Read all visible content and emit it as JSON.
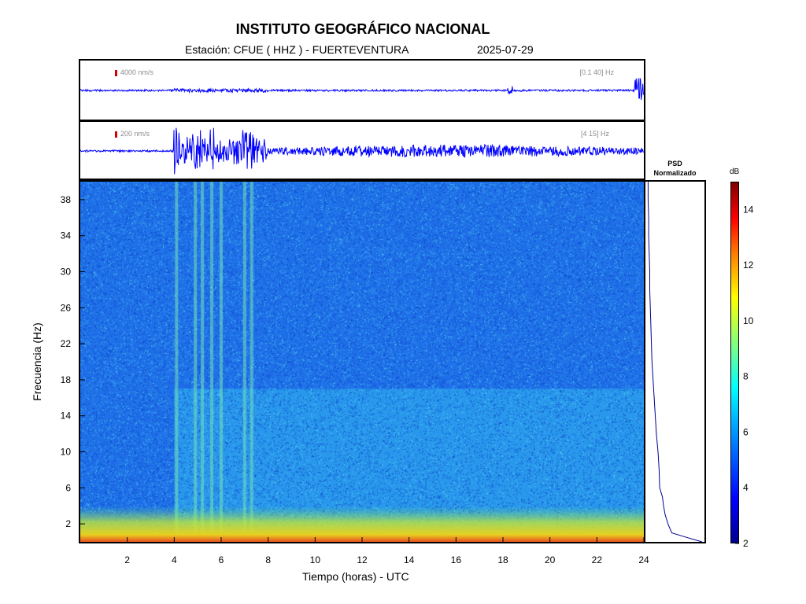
{
  "header": {
    "title": "INSTITUTO GEOGRÁFICO NACIONAL",
    "station": "Estación:  CFUE ( HHZ ) - FUERTEVENTURA",
    "date": "2025-07-29"
  },
  "traces": [
    {
      "amplitude_label": "4000 nm/s",
      "filter_label": "[0.1 40] Hz"
    },
    {
      "amplitude_label": "200 nm/s",
      "filter_label": "[4 15] Hz"
    }
  ],
  "psd": {
    "title_line1": "PSD",
    "title_line2": "Normalizado"
  },
  "colorbar": {
    "unit": "dB",
    "ticks": [
      "2",
      "4",
      "6",
      "8",
      "10",
      "12",
      "14"
    ],
    "range": [
      2,
      15
    ],
    "colors": [
      "#00008f",
      "#0000ff",
      "#0080ff",
      "#00ffff",
      "#80ff80",
      "#ffff00",
      "#ff8000",
      "#ff0000",
      "#800000"
    ]
  },
  "chart_data": {
    "type": "heatmap",
    "xlabel": "Tiempo (horas) - UTC",
    "ylabel": "Frecuencia  (Hz)",
    "xlim": [
      0,
      24
    ],
    "ylim": [
      0,
      40
    ],
    "x_ticks": [
      "2",
      "4",
      "6",
      "8",
      "10",
      "12",
      "14",
      "16",
      "18",
      "20",
      "22",
      "24"
    ],
    "y_ticks": [
      "2",
      "6",
      "10",
      "14",
      "18",
      "22",
      "26",
      "30",
      "34",
      "38"
    ],
    "background_color": "#1f6fe8",
    "band_color": "#2fb8ee",
    "noise_floor_color": "#e8d020",
    "band_range_hz": [
      0,
      17
    ],
    "band_segments_hours": [
      [
        4,
        24
      ]
    ],
    "bursts_hours": [
      4.1,
      4.9,
      5.2,
      5.6,
      6.0,
      7.0,
      7.3
    ],
    "psd_profile": {
      "freq_hz": [
        0,
        0.5,
        1,
        2,
        3,
        4,
        5,
        6,
        8,
        10,
        12,
        14,
        16,
        18,
        20,
        22,
        24,
        26,
        28,
        30,
        32,
        34,
        36,
        38,
        40
      ],
      "value": [
        1.0,
        0.72,
        0.45,
        0.38,
        0.33,
        0.3,
        0.28,
        0.23,
        0.22,
        0.2,
        0.17,
        0.15,
        0.13,
        0.11,
        0.09,
        0.08,
        0.07,
        0.06,
        0.05,
        0.05,
        0.04,
        0.03,
        0.03,
        0.02,
        0.02
      ]
    }
  }
}
